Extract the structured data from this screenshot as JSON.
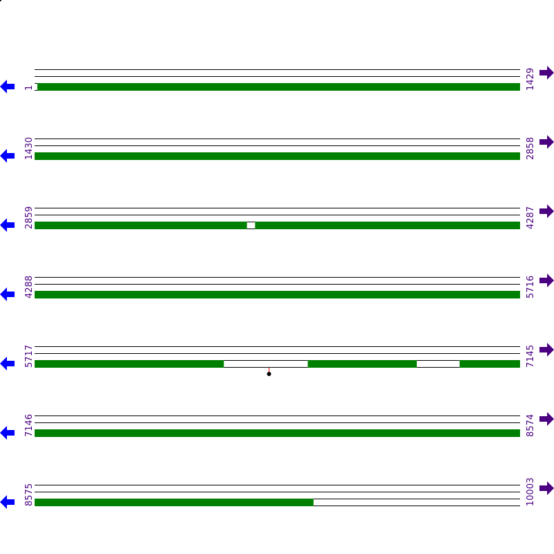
{
  "colors": {
    "covered": "#008000",
    "line": "#000000",
    "label": "#4b0082",
    "left_arrow": "#0000ff",
    "right_arrow": "#4b0082",
    "pin_stem": "#ff0000",
    "pin_head": "#000000"
  },
  "icons": {
    "left": "arrow-left-icon",
    "right": "arrow-right-icon",
    "pin": "marker-pin-icon"
  },
  "rows": [
    {
      "start": 1,
      "end": 1429,
      "start_label": "1",
      "end_label": "1429",
      "gaps": [
        [
          1,
          9
        ]
      ],
      "coverage_end": null,
      "pins": []
    },
    {
      "start": 1430,
      "end": 2858,
      "start_label": "1430",
      "end_label": "2858",
      "gaps": [],
      "coverage_end": null,
      "pins": []
    },
    {
      "start": 2859,
      "end": 4287,
      "start_label": "2859",
      "end_label": "4287",
      "gaps": [
        [
          3484,
          3508
        ]
      ],
      "coverage_end": null,
      "pins": []
    },
    {
      "start": 4288,
      "end": 5716,
      "start_label": "4288",
      "end_label": "5716",
      "gaps": [],
      "coverage_end": null,
      "pins": []
    },
    {
      "start": 5717,
      "end": 7145,
      "start_label": "5717",
      "end_label": "7145",
      "gaps": [
        [
          6274,
          6521
        ],
        [
          6842,
          6968
        ]
      ],
      "coverage_end": null,
      "pins": [
        6405
      ]
    },
    {
      "start": 7146,
      "end": 8574,
      "start_label": "7146",
      "end_label": "8574",
      "gaps": [],
      "coverage_end": null,
      "pins": []
    },
    {
      "start": 8575,
      "end": 10003,
      "start_label": "8575",
      "end_label": "10003",
      "gaps": [],
      "coverage_end": 9396,
      "pins": []
    }
  ]
}
